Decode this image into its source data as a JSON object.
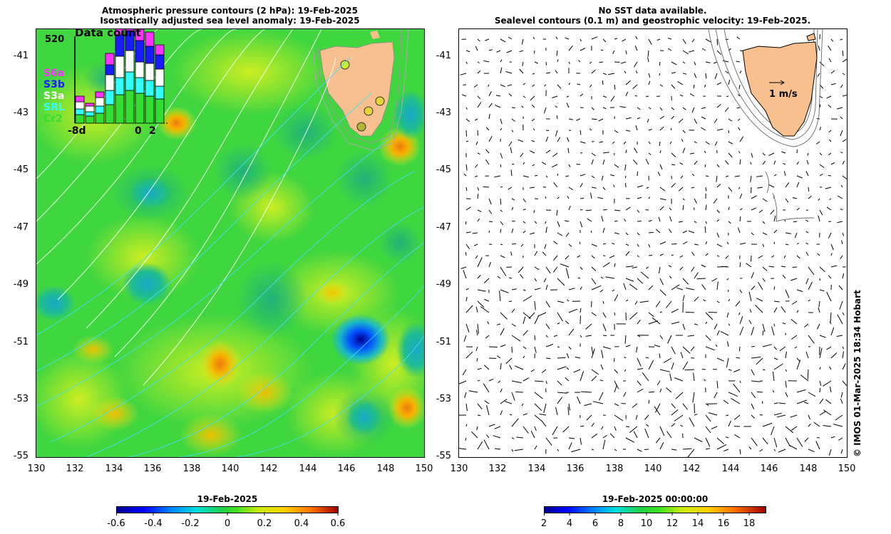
{
  "left_panel": {
    "title_line1": "Atmospheric pressure contours (2 hPa): 19-Feb-2025",
    "title_line2": "Isostatically adjusted sea level anomaly: 19-Feb-2025",
    "inset": {
      "title": "Data count",
      "max_count": "520",
      "legend": [
        {
          "label": "S6a",
          "color": "#ff33ff"
        },
        {
          "label": "S3b",
          "color": "#1a1aff"
        },
        {
          "label": "S3a",
          "color": "#ffffff"
        },
        {
          "label": "SRL",
          "color": "#33ffff"
        },
        {
          "label": "Cr2",
          "color": "#33dd33"
        }
      ],
      "x_left_label": "-8d",
      "x_mid_label": "0",
      "x_right_label": "2"
    },
    "colorbar": {
      "title": "19-Feb-2025",
      "ticks": [
        "-0.6",
        "-0.4",
        "-0.2",
        "0",
        "0.2",
        "0.4",
        "0.6"
      ]
    }
  },
  "right_panel": {
    "title_line1": "No SST data available.",
    "title_line2": "Sealevel contours (0.1 m) and geostrophic velocity: 19-Feb-2025.",
    "scale_label": "1 m/s",
    "colorbar": {
      "title": "19-Feb-2025 00:00:00",
      "ticks": [
        "2",
        "4",
        "6",
        "8",
        "10",
        "12",
        "14",
        "16",
        "18"
      ]
    }
  },
  "axes": {
    "y_ticks": [
      "-41",
      "-43",
      "-45",
      "-47",
      "-49",
      "-51",
      "-53",
      "-55"
    ],
    "x_ticks": [
      "130",
      "132",
      "134",
      "136",
      "138",
      "140",
      "142",
      "144",
      "146",
      "148",
      "150"
    ]
  },
  "credit": "© IMOS 01-Mar-2025 18:34 Hobart",
  "colors": {
    "land": "#f9c08f",
    "background_anomaly": "#3fd63f"
  }
}
